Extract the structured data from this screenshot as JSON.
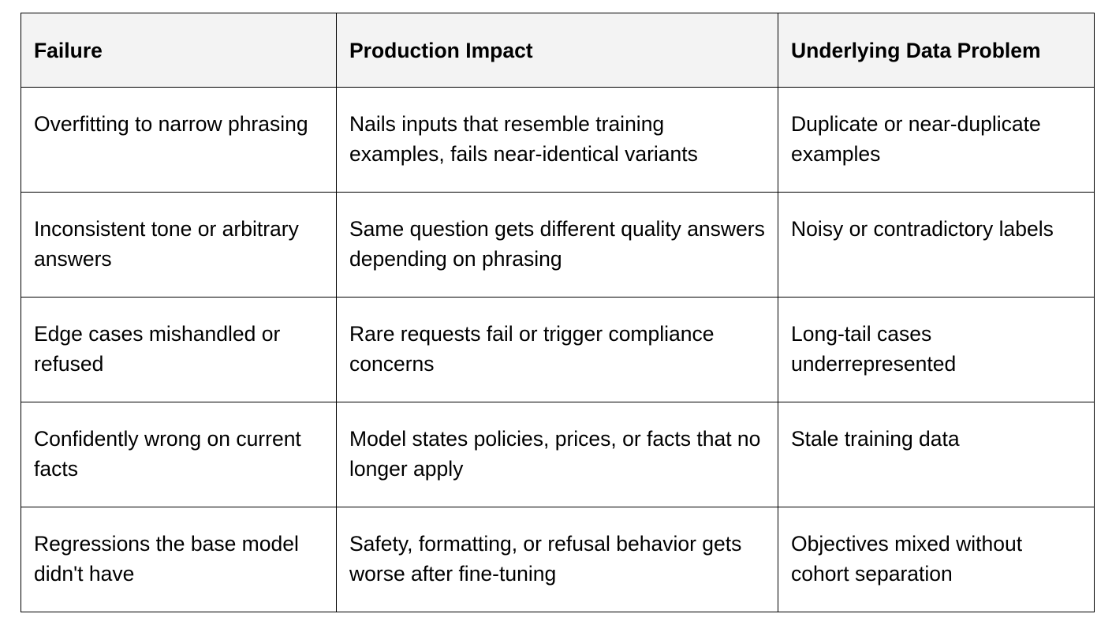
{
  "table": {
    "headers": [
      "Failure",
      "Production Impact",
      "Underlying Data Problem"
    ],
    "rows": [
      [
        "Overfitting to narrow phrasing",
        "Nails inputs that resemble training examples, fails near-identical variants",
        "Duplicate or near-duplicate examples"
      ],
      [
        "Inconsistent tone or arbitrary answers",
        "Same question gets different quality answers depending on phrasing",
        "Noisy or contradictory labels"
      ],
      [
        "Edge cases mishandled or refused",
        "Rare requests fail or trigger compliance concerns",
        "Long-tail cases underrepresented"
      ],
      [
        "Confidently wrong on current facts",
        "Model states policies, prices, or facts that no longer apply",
        "Stale training data"
      ],
      [
        "Regressions the base model didn't have",
        "Safety, formatting, or refusal behavior gets worse after fine-tuning",
        "Objectives mixed without cohort separation"
      ]
    ]
  }
}
